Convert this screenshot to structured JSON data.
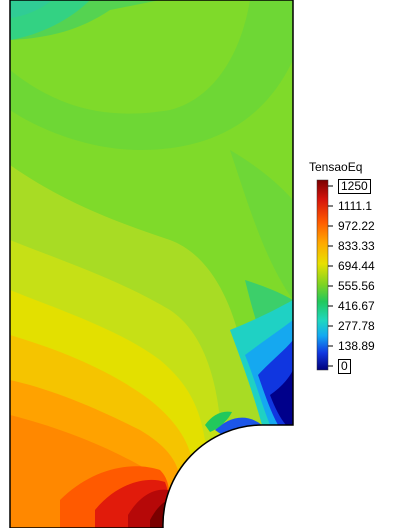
{
  "legend": {
    "title": "TensaoEq",
    "ticks": [
      "1250",
      "1111.1",
      "972.22",
      "833.33",
      "694.44",
      "555.56",
      "416.67",
      "277.78",
      "138.89",
      "0"
    ],
    "boxed_ticks": [
      "1250",
      "0"
    ],
    "colors": {
      "max": "#8b0000",
      "high": "#e11b0b",
      "upper": "#ff7a00",
      "mid_upper": "#f5d400",
      "mid": "#7ed321",
      "mid_lower": "#27c95a",
      "lower": "#1fd1a8",
      "low": "#1aa0f0",
      "very_low": "#1038d8",
      "min": "#00008b"
    }
  }
}
